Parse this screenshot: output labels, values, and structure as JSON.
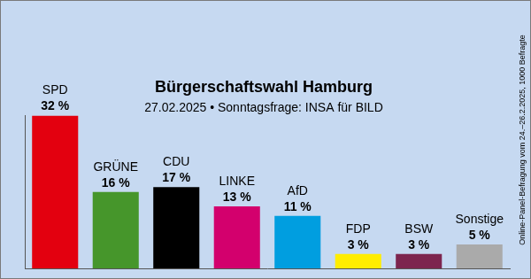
{
  "chart_data": {
    "type": "bar",
    "title": "Bürgerschaftswahl Hamburg",
    "subtitle": "27.02.2025 • Sonntagsfrage: INSA für BILD",
    "annotations": [
      "Online-Panel-Befragung vom 24.–26.2.2025, 1000 Befragte"
    ],
    "categories": [
      "SPD",
      "GRÜNE",
      "CDU",
      "LINKE",
      "AfD",
      "FDP",
      "BSW",
      "Sonstige"
    ],
    "values": [
      32,
      16,
      17,
      13,
      11,
      3,
      3,
      5
    ],
    "value_labels": [
      "32 %",
      "16 %",
      "17 %",
      "13 %",
      "11 %",
      "3 %",
      "3 %",
      "5 %"
    ],
    "colors": [
      "#e3000f",
      "#46962b",
      "#000000",
      "#d3006d",
      "#009ee0",
      "#ffed00",
      "#7d254f",
      "#aaaaaa"
    ],
    "ylim": [
      0,
      32
    ],
    "data_labels": true,
    "tick_labels": false,
    "grid": false
  }
}
